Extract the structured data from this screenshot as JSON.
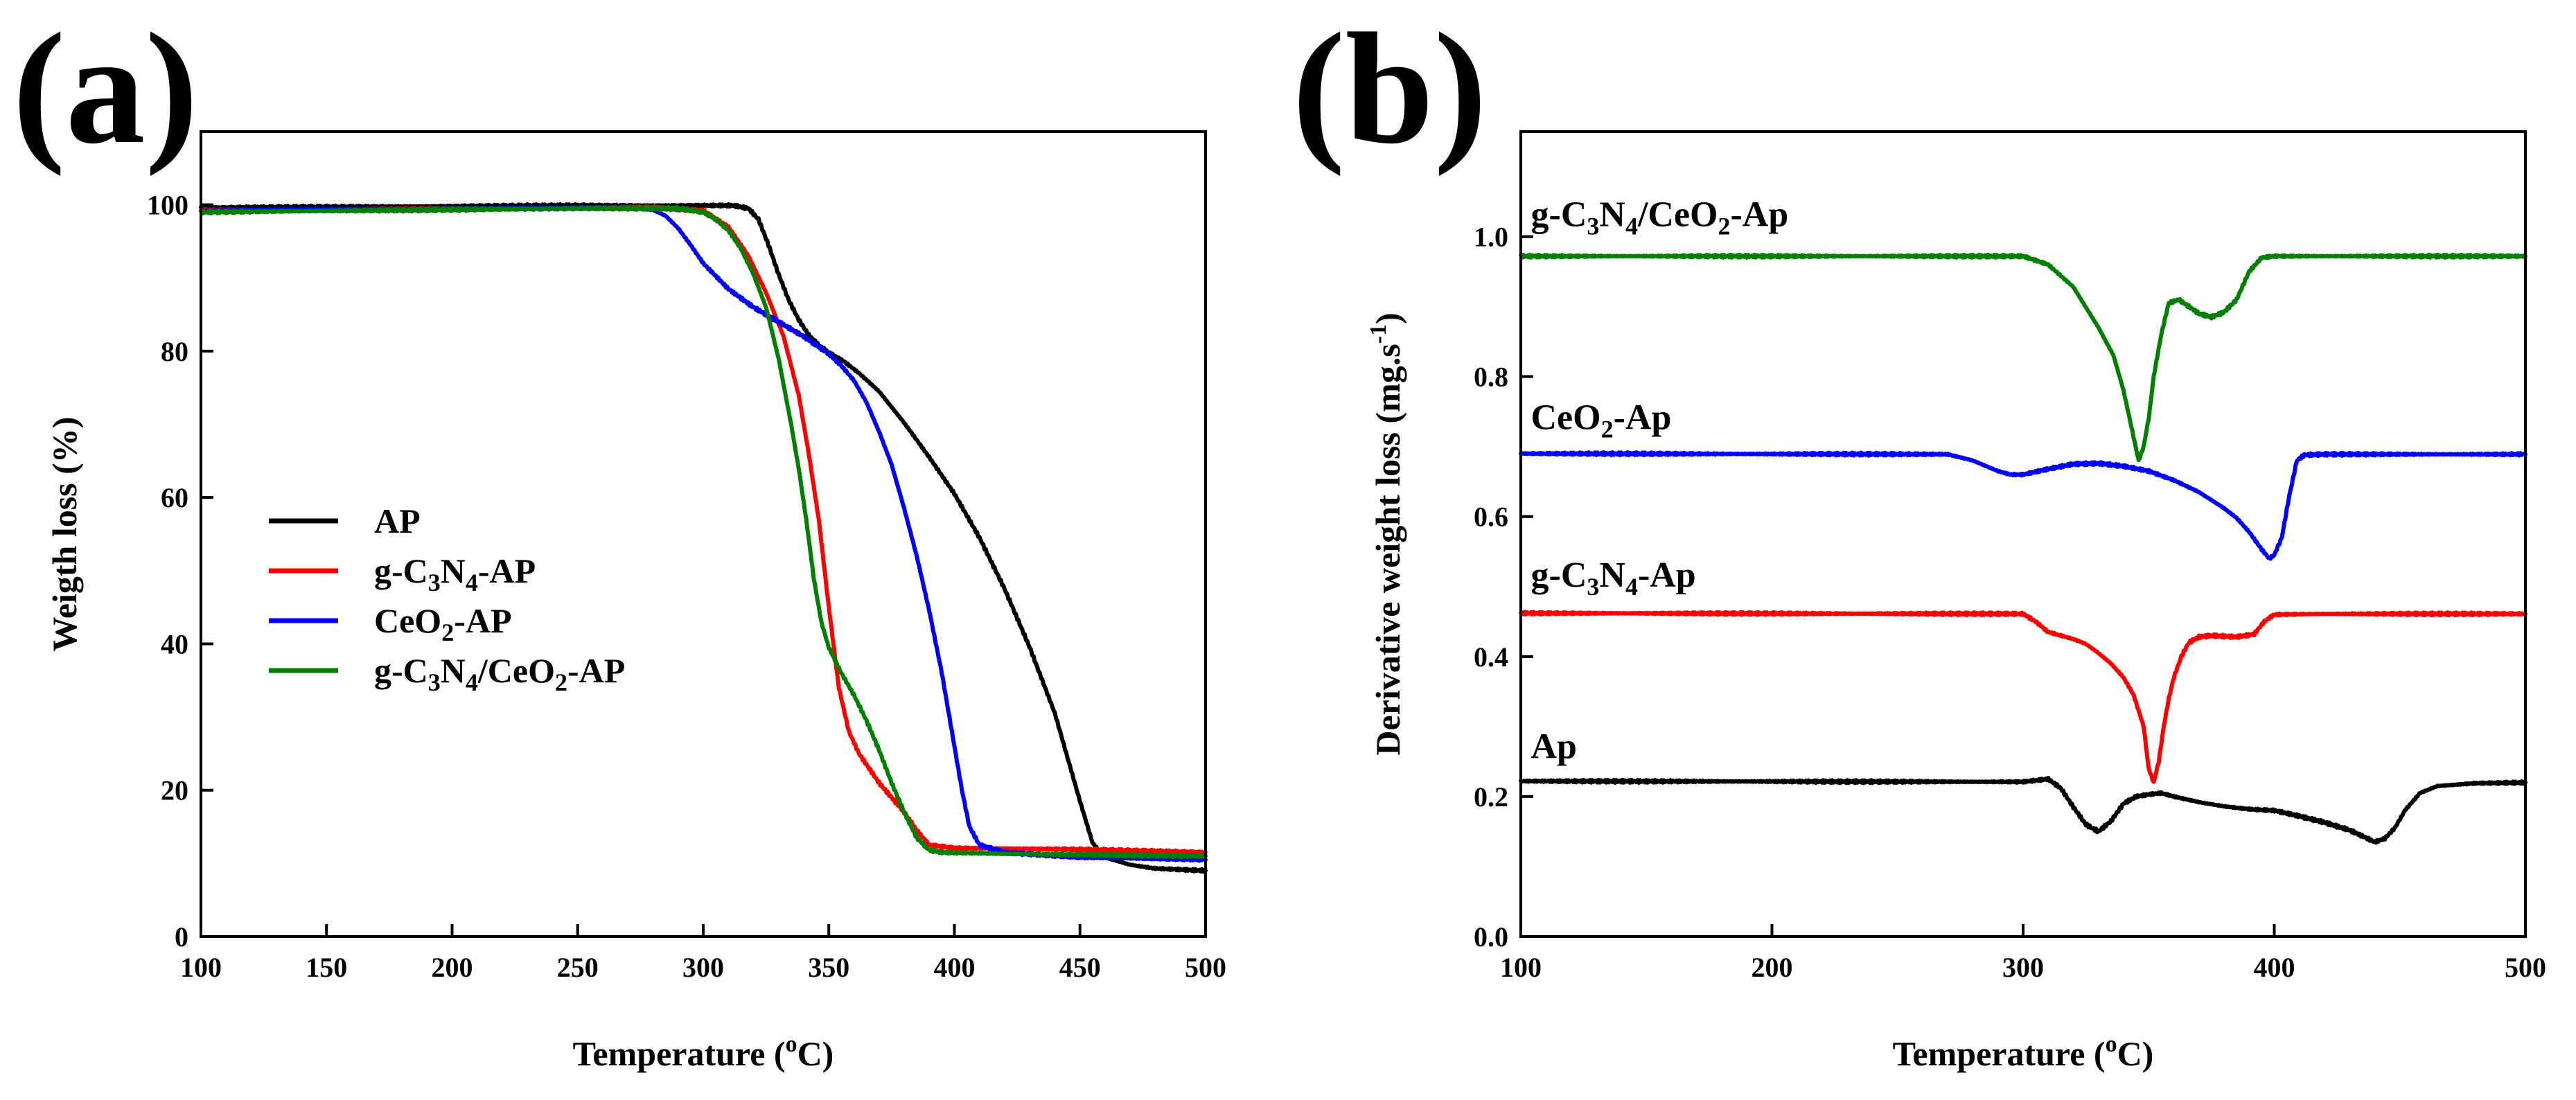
{
  "chart_data": [
    {
      "type": "line",
      "panel_label": "(a)",
      "xlabel": "Temperature (oC)",
      "xlabel_parts": {
        "pre": "Temperature (",
        "sup": "o",
        "post": "C)"
      },
      "ylabel": "Weigth loss (%)",
      "xlim": [
        100,
        500
      ],
      "ylim": [
        0,
        110
      ],
      "xticks": [
        100,
        150,
        200,
        250,
        300,
        350,
        400,
        450,
        500
      ],
      "yticks": [
        0,
        20,
        40,
        60,
        80,
        100
      ],
      "legend_position": "lower-left",
      "legend": [
        {
          "label": "AP",
          "parts": [
            [
              "AP",
              ""
            ]
          ]
        },
        {
          "label": "g-C3N4-AP",
          "parts": [
            [
              "g-C",
              ""
            ],
            [
              "3",
              "sub"
            ],
            [
              "N",
              ""
            ],
            [
              "4",
              "sub"
            ],
            [
              "-AP",
              ""
            ]
          ]
        },
        {
          "label": "CeO2-AP",
          "parts": [
            [
              "CeO",
              ""
            ],
            [
              "2",
              "sub"
            ],
            [
              "-AP",
              ""
            ]
          ]
        },
        {
          "label": "g-C3N4/CeO2-AP",
          "parts": [
            [
              "g-C",
              ""
            ],
            [
              "3",
              "sub"
            ],
            [
              "N",
              ""
            ],
            [
              "4",
              "sub"
            ],
            [
              "/CeO",
              ""
            ],
            [
              "2",
              "sub"
            ],
            [
              "-AP",
              ""
            ]
          ]
        }
      ],
      "series": [
        {
          "name": "AP",
          "color": "#000000",
          "x": [
            100,
            250,
            300,
            312,
            318,
            322,
            326,
            330,
            334,
            338,
            342,
            346,
            350,
            356,
            362,
            370,
            380,
            390,
            400,
            410,
            420,
            430,
            440,
            445,
            450,
            455,
            460,
            470,
            480,
            500
          ],
          "y": [
            99.6,
            99.9,
            99.9,
            99.9,
            99.5,
            98,
            94.5,
            90.5,
            87,
            84.3,
            82.2,
            80.8,
            79.8,
            78.6,
            77,
            74.5,
            70.2,
            65.5,
            60.5,
            54.5,
            47.5,
            39.5,
            30.5,
            24.5,
            18.5,
            12.8,
            10.8,
            9.8,
            9.3,
            9.0
          ]
        },
        {
          "name": "g-C3N4-AP",
          "color": "#ff0000",
          "x": [
            100,
            280,
            300,
            310,
            318,
            325,
            332,
            338,
            342,
            346,
            350,
            354,
            358,
            362,
            366,
            370,
            375,
            380,
            385,
            390,
            400,
            450,
            500
          ],
          "y": [
            99.2,
            99.6,
            99.2,
            97,
            93,
            88,
            82,
            74,
            66,
            57,
            45,
            34,
            28,
            25,
            23,
            21,
            19,
            17,
            14.5,
            12.5,
            12.1,
            11.9,
            11.5
          ]
        },
        {
          "name": "CeO2-AP",
          "color": "#0000ff",
          "x": [
            100,
            270,
            280,
            285,
            290,
            295,
            300,
            310,
            320,
            330,
            340,
            350,
            355,
            360,
            365,
            370,
            375,
            380,
            385,
            390,
            395,
            400,
            403,
            406,
            410,
            420,
            450,
            500
          ],
          "y": [
            99.2,
            99.6,
            99.3,
            98.5,
            96.8,
            94.5,
            92,
            88.5,
            86,
            84,
            82,
            79.6,
            78,
            76,
            73,
            69,
            64.5,
            58.5,
            52,
            44.5,
            36,
            26,
            20,
            15,
            12.5,
            11.5,
            10.8,
            10.5
          ]
        },
        {
          "name": "g-C3N4/CeO2-AP",
          "color": "#008000",
          "x": [
            100,
            250,
            290,
            300,
            305,
            310,
            315,
            320,
            325,
            330,
            335,
            338,
            341,
            344,
            347,
            350,
            355,
            360,
            365,
            370,
            375,
            380,
            385,
            390,
            395,
            420,
            500
          ],
          "y": [
            99.0,
            99.5,
            99.5,
            99.0,
            98,
            96.5,
            94,
            90.5,
            86,
            79,
            70,
            64,
            57,
            49,
            43,
            39.5,
            36,
            33,
            29.5,
            25.5,
            21,
            17,
            13.5,
            11.8,
            11.5,
            11.3,
            11.0
          ]
        }
      ]
    },
    {
      "type": "line",
      "panel_label": "(b)",
      "xlabel": "Temperature (oC)",
      "xlabel_parts": {
        "pre": "Temperature (",
        "sup": "o",
        "post": "C)"
      },
      "ylabel": "Derivative weight loss (mg.s-1)",
      "ylabel_parts": {
        "pre": "Derivative weight loss (mg.s",
        "sup": "-1",
        "post": ")"
      },
      "xlim": [
        100,
        500
      ],
      "ylim": [
        0,
        1.15
      ],
      "xticks": [
        100,
        200,
        300,
        400,
        500
      ],
      "yticks": [
        0.0,
        0.2,
        0.4,
        0.6,
        0.8,
        1.0
      ],
      "ytick_labels": [
        "0.0",
        "0.2",
        "0.4",
        "0.6",
        "0.8",
        "1.0"
      ],
      "curve_labels": [
        {
          "label": "g-C3N4/CeO2-Ap",
          "x": 104,
          "y": 1.015,
          "parts": [
            [
              "g-C",
              ""
            ],
            [
              "3",
              "sub"
            ],
            [
              "N",
              ""
            ],
            [
              "4",
              "sub"
            ],
            [
              "/CeO",
              ""
            ],
            [
              "2",
              "sub"
            ],
            [
              "-Ap",
              ""
            ]
          ]
        },
        {
          "label": "CeO2-Ap",
          "x": 104,
          "y": 0.725,
          "parts": [
            [
              "CeO",
              ""
            ],
            [
              "2",
              "sub"
            ],
            [
              "-Ap",
              ""
            ]
          ]
        },
        {
          "label": "g-C3N4-Ap",
          "x": 104,
          "y": 0.5,
          "parts": [
            [
              "g-C",
              ""
            ],
            [
              "3",
              "sub"
            ],
            [
              "N",
              ""
            ],
            [
              "4",
              "sub"
            ],
            [
              "-Ap",
              ""
            ]
          ]
        },
        {
          "label": "Ap",
          "x": 104,
          "y": 0.255,
          "parts": [
            [
              "Ap",
              ""
            ]
          ]
        }
      ],
      "series": [
        {
          "name": "Ap",
          "color": "#000000",
          "x": [
            100,
            300,
            310,
            315,
            320,
            325,
            330,
            335,
            340,
            345,
            350,
            355,
            360,
            370,
            380,
            390,
            400,
            410,
            420,
            430,
            436,
            440,
            444,
            448,
            452,
            458,
            465,
            480,
            500
          ],
          "y": [
            0.222,
            0.221,
            0.225,
            0.212,
            0.185,
            0.16,
            0.15,
            0.165,
            0.19,
            0.2,
            0.203,
            0.205,
            0.2,
            0.192,
            0.186,
            0.182,
            0.18,
            0.172,
            0.163,
            0.152,
            0.142,
            0.135,
            0.14,
            0.155,
            0.18,
            0.205,
            0.215,
            0.219,
            0.22
          ]
        },
        {
          "name": "g-C3N4-Ap",
          "color": "#ff0000",
          "x": [
            100,
            300,
            305,
            310,
            315,
            320,
            325,
            330,
            335,
            340,
            344,
            348,
            350,
            352,
            354,
            356,
            358,
            360,
            363,
            366,
            370,
            375,
            385,
            392,
            396,
            400,
            420,
            500
          ],
          "y": [
            0.462,
            0.461,
            0.45,
            0.435,
            0.43,
            0.425,
            0.418,
            0.405,
            0.39,
            0.37,
            0.345,
            0.3,
            0.24,
            0.22,
            0.25,
            0.3,
            0.34,
            0.37,
            0.4,
            0.42,
            0.428,
            0.43,
            0.428,
            0.432,
            0.45,
            0.46,
            0.461,
            0.461
          ]
        },
        {
          "name": "CeO2-Ap",
          "color": "#0000ff",
          "x": [
            100,
            270,
            280,
            290,
            295,
            300,
            310,
            320,
            330,
            340,
            350,
            360,
            370,
            380,
            385,
            390,
            395,
            398,
            400,
            403,
            406,
            409,
            412,
            420,
            500
          ],
          "y": [
            0.69,
            0.689,
            0.68,
            0.665,
            0.66,
            0.66,
            0.668,
            0.675,
            0.676,
            0.672,
            0.665,
            0.652,
            0.635,
            0.612,
            0.598,
            0.578,
            0.553,
            0.54,
            0.545,
            0.57,
            0.63,
            0.68,
            0.688,
            0.689,
            0.689
          ]
        },
        {
          "name": "g-C3N4/CeO2-Ap",
          "color": "#008000",
          "x": [
            100,
            300,
            310,
            320,
            330,
            336,
            340,
            343,
            346,
            348,
            350,
            352,
            355,
            358,
            362,
            366,
            370,
            375,
            380,
            385,
            390,
            395,
            400,
            500
          ],
          "y": [
            0.972,
            0.972,
            0.96,
            0.928,
            0.87,
            0.83,
            0.78,
            0.73,
            0.68,
            0.7,
            0.74,
            0.8,
            0.86,
            0.905,
            0.91,
            0.9,
            0.89,
            0.885,
            0.892,
            0.91,
            0.95,
            0.97,
            0.972,
            0.972
          ]
        }
      ]
    }
  ]
}
